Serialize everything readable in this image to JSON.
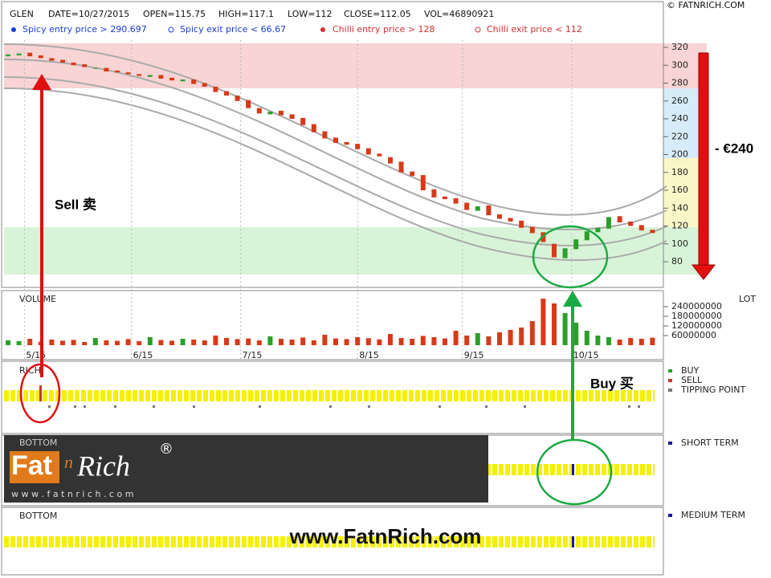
{
  "header": {
    "symbol": "GLEN",
    "date": "DATE=10/27/2015",
    "open": "OPEN=115.75",
    "high": "HIGH=117.1",
    "low": "LOW=112",
    "close": "CLOSE=112.05",
    "vol": "VOL=46890921",
    "copyright": "© FATNRICH.COM",
    "legend": [
      "Spicy entry price > 290.697",
      "Spicy exit price < 66.67",
      "Chilli entry price > 128",
      "Chilli exit price < 112"
    ]
  },
  "chart_data": [
    {
      "type": "candlestick",
      "up_color": "#2aa02a",
      "down_color": "#d63a1a",
      "open": [
        310,
        311,
        314,
        311,
        308,
        306,
        303,
        301,
        296,
        297,
        294,
        292,
        290,
        287,
        289,
        286,
        282,
        284,
        280,
        276,
        271,
        266,
        261,
        252,
        245,
        249,
        245,
        241,
        234,
        226,
        219,
        214,
        212,
        207,
        201,
        197,
        192,
        181,
        177,
        161,
        153,
        151,
        146,
        137,
        143,
        133,
        129,
        126,
        119,
        113,
        100,
        84,
        94,
        104,
        113,
        117,
        131,
        125,
        121,
        115.75
      ],
      "close": [
        312,
        313,
        310,
        308,
        305,
        303,
        300,
        298,
        297,
        293,
        292,
        290,
        288,
        289,
        285,
        283,
        284,
        279,
        276,
        270,
        266,
        260,
        252,
        246,
        248,
        244,
        240,
        233,
        225,
        218,
        213,
        211,
        206,
        200,
        198,
        190,
        180,
        176,
        160,
        152,
        150,
        145,
        138,
        142,
        132,
        128,
        125,
        118,
        112,
        102,
        85,
        95,
        105,
        114,
        118,
        130,
        124,
        120,
        115,
        112.05
      ],
      "ylim": [
        80,
        320
      ],
      "yticks": [
        80,
        100,
        120,
        140,
        160,
        180,
        200,
        220,
        240,
        260,
        280,
        300,
        320
      ],
      "xticks": [
        {
          "value": 1.5,
          "label": "5/15"
        },
        {
          "value": 11.3,
          "label": "6/15"
        },
        {
          "value": 21.3,
          "label": "7/15"
        },
        {
          "value": 32,
          "label": "8/15"
        },
        {
          "value": 41.6,
          "label": "9/15"
        },
        {
          "value": 51.6,
          "label": "10/15"
        }
      ]
    },
    {
      "type": "bar",
      "title": "VOLUME",
      "axis_label": "LOT",
      "values": [
        30000000,
        25000000,
        40000000,
        22000000,
        35000000,
        28000000,
        33000000,
        20000000,
        45000000,
        30000000,
        27000000,
        38000000,
        25000000,
        50000000,
        32000000,
        28000000,
        40000000,
        35000000,
        30000000,
        60000000,
        45000000,
        38000000,
        42000000,
        30000000,
        55000000,
        40000000,
        35000000,
        48000000,
        30000000,
        65000000,
        42000000,
        38000000,
        50000000,
        44000000,
        36000000,
        70000000,
        45000000,
        40000000,
        58000000,
        50000000,
        42000000,
        90000000,
        60000000,
        75000000,
        55000000,
        80000000,
        95000000,
        110000000,
        150000000,
        290000000,
        260000000,
        200000000,
        140000000,
        90000000,
        60000000,
        50000000,
        35000000,
        45000000,
        40000000,
        46890921
      ],
      "ylim": [
        0,
        300000000
      ],
      "yticks": [
        60000000,
        120000000,
        180000000,
        240000000
      ]
    }
  ],
  "panels": {
    "rich": "RICH",
    "bottom1": "BOTTOM",
    "bottom2": "BOTTOM",
    "buy": "BUY",
    "sell": "SELL",
    "tipping": "TIPPING POINT",
    "short": "SHORT TERM",
    "medium": "MEDIUM TERM"
  },
  "annotations": {
    "sell": "Sell 卖",
    "buy": "Buy 买",
    "drop": "- €240",
    "site": "www.FatnRich.com"
  },
  "logo": {
    "fat": "Fat",
    "n": "n",
    "rich": "Rich",
    "reg": "®",
    "url": "w w w . f a t n r i c h . c o m"
  }
}
